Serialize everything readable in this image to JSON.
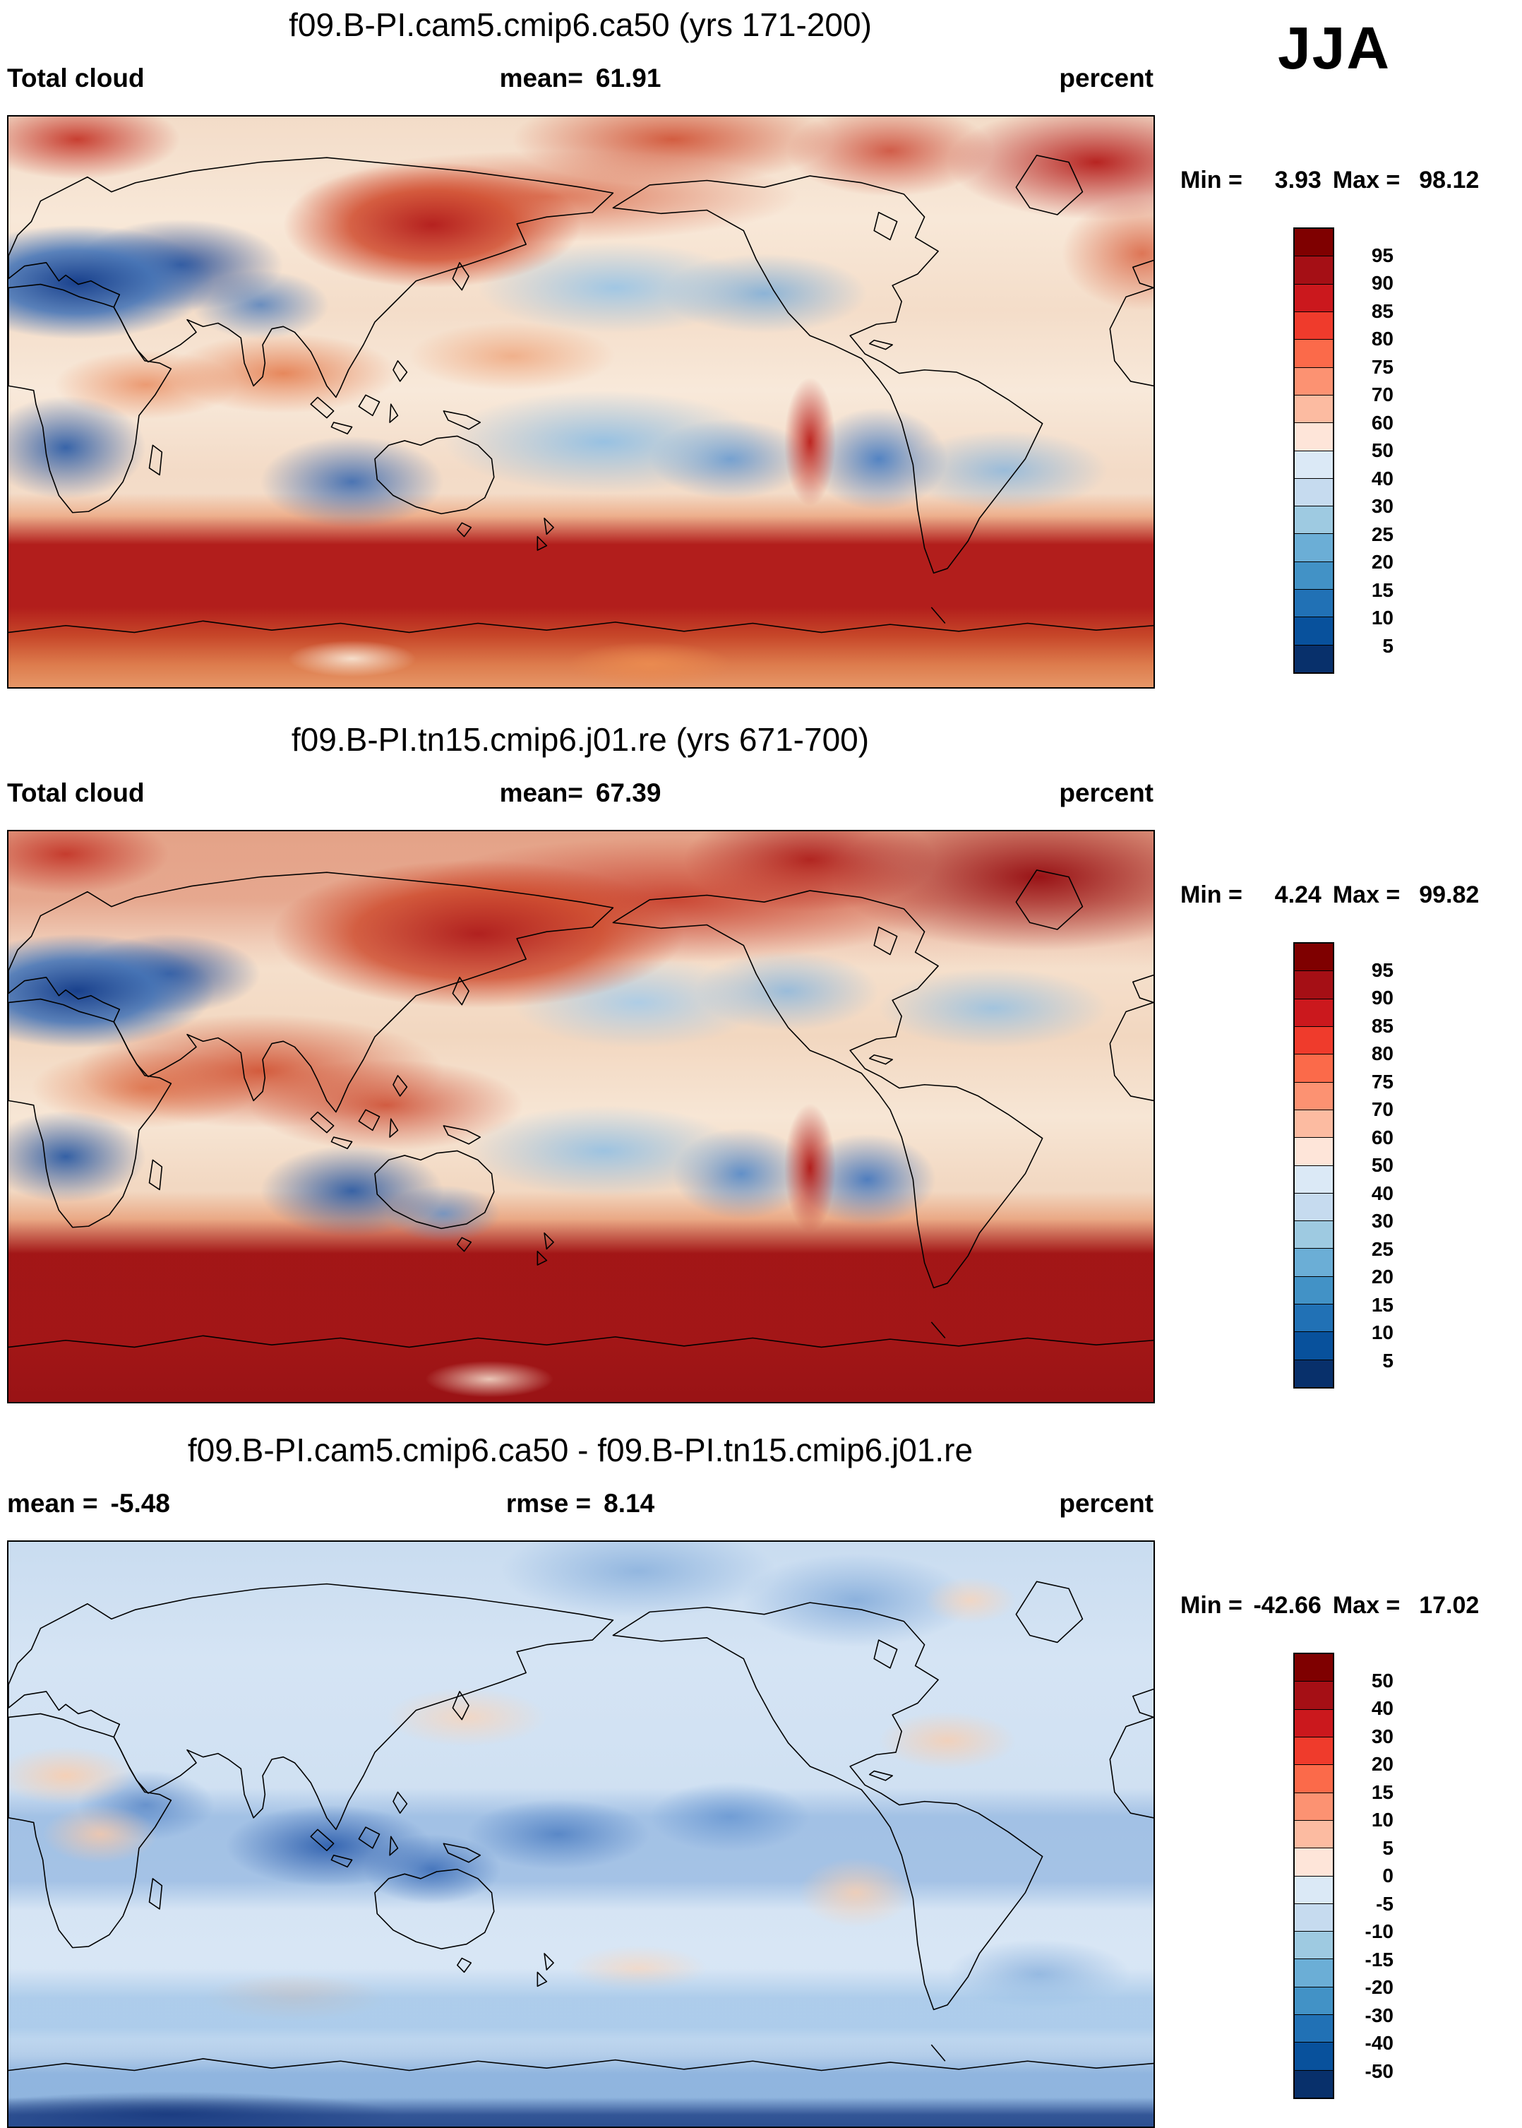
{
  "header": {
    "season_label": "JJA"
  },
  "panels": [
    {
      "title": "f09.B-PI.cam5.cmip6.ca50 (yrs 171-200)",
      "left_label": "Total cloud",
      "center_label": "mean=",
      "center_value": "61.91",
      "units": "percent",
      "min_label": "Min =",
      "min_value": "3.93",
      "max_label": "Max =",
      "max_value": "98.12",
      "colorbar": {
        "labels": [
          "95",
          "90",
          "85",
          "80",
          "75",
          "70",
          "60",
          "50",
          "40",
          "30",
          "25",
          "20",
          "15",
          "10",
          "5"
        ],
        "colors": [
          "#7f0000",
          "#a50f15",
          "#cb181d",
          "#ef3b2c",
          "#fb6a4a",
          "#fc9272",
          "#fcbba1",
          "#fee5d9",
          "#dbe9f6",
          "#c6dbef",
          "#9ecae1",
          "#6baed6",
          "#4292c6",
          "#2171b5",
          "#08519c",
          "#08306b"
        ]
      }
    },
    {
      "title": "f09.B-PI.tn15.cmip6.j01.re (yrs 671-700)",
      "left_label": "Total cloud",
      "center_label": "mean=",
      "center_value": "67.39",
      "units": "percent",
      "min_label": "Min =",
      "min_value": "4.24",
      "max_label": "Max =",
      "max_value": "99.82",
      "colorbar": {
        "labels": [
          "95",
          "90",
          "85",
          "80",
          "75",
          "70",
          "60",
          "50",
          "40",
          "30",
          "25",
          "20",
          "15",
          "10",
          "5"
        ],
        "colors": [
          "#7f0000",
          "#a50f15",
          "#cb181d",
          "#ef3b2c",
          "#fb6a4a",
          "#fc9272",
          "#fcbba1",
          "#fee5d9",
          "#dbe9f6",
          "#c6dbef",
          "#9ecae1",
          "#6baed6",
          "#4292c6",
          "#2171b5",
          "#08519c",
          "#08306b"
        ]
      }
    },
    {
      "title": "f09.B-PI.cam5.cmip6.ca50 - f09.B-PI.tn15.cmip6.j01.re",
      "left_label": "mean =",
      "left_value": "-5.48",
      "center_label": "rmse =",
      "center_value": "8.14",
      "units": "percent",
      "min_label": "Min =",
      "min_value": "-42.66",
      "max_label": "Max =",
      "max_value": "17.02",
      "colorbar": {
        "labels": [
          "50",
          "40",
          "30",
          "20",
          "15",
          "10",
          "5",
          "0",
          "-5",
          "-10",
          "-15",
          "-20",
          "-30",
          "-40",
          "-50"
        ],
        "colors": [
          "#7f0000",
          "#a50f15",
          "#cb181d",
          "#ef3b2c",
          "#fb6a4a",
          "#fc9272",
          "#fcbba1",
          "#fee5d9",
          "#dbe9f6",
          "#c6dbef",
          "#9ecae1",
          "#6baed6",
          "#4292c6",
          "#2171b5",
          "#08519c",
          "#08306b"
        ]
      }
    }
  ],
  "chart_data": [
    {
      "type": "heatmap",
      "title": "f09.B-PI.cam5.cmip6.ca50 (yrs 171-200)",
      "variable": "Total cloud",
      "season": "JJA",
      "units": "percent",
      "mean": 61.91,
      "min": 3.93,
      "max": 98.12,
      "contour_levels": [
        5,
        10,
        15,
        20,
        25,
        30,
        40,
        50,
        60,
        70,
        75,
        80,
        85,
        90,
        95
      ],
      "palette_top_to_bottom": [
        "#7f0000",
        "#a50f15",
        "#cb181d",
        "#ef3b2c",
        "#fb6a4a",
        "#fc9272",
        "#fcbba1",
        "#fee5d9",
        "#dbe9f6",
        "#c6dbef",
        "#9ecae1",
        "#6baed6",
        "#4292c6",
        "#2171b5",
        "#08519c",
        "#08306b"
      ],
      "legend_position": "right",
      "description": "Global filled-contour map: high cloud fraction (dark red) over the Southern Ocean storm track, North Pacific, Arctic and North Atlantic; low cloud fraction (deep blue) over Sahara/Arabia, southern Africa, Australia and subtropical oceans."
    },
    {
      "type": "heatmap",
      "title": "f09.B-PI.tn15.cmip6.j01.re (yrs 671-700)",
      "variable": "Total cloud",
      "season": "JJA",
      "units": "percent",
      "mean": 67.39,
      "min": 4.24,
      "max": 99.82,
      "contour_levels": [
        5,
        10,
        15,
        20,
        25,
        30,
        40,
        50,
        60,
        70,
        75,
        80,
        85,
        90,
        95
      ],
      "palette_top_to_bottom": [
        "#7f0000",
        "#a50f15",
        "#cb181d",
        "#ef3b2c",
        "#fb6a4a",
        "#fc9272",
        "#fcbba1",
        "#fee5d9",
        "#dbe9f6",
        "#c6dbef",
        "#9ecae1",
        "#6baed6",
        "#4292c6",
        "#2171b5",
        "#08519c",
        "#08306b"
      ],
      "legend_position": "right",
      "description": "Same field as panel 1 but with more extensive high cloud cover: deeper reds over the northern oceans, tropics and a broader dark-red Southern Ocean band; similar blue minima over Sahara/Arabia, southern Africa and Australia."
    },
    {
      "type": "heatmap",
      "title": "f09.B-PI.cam5.cmip6.ca50 - f09.B-PI.tn15.cmip6.j01.re",
      "variable": "Total cloud difference",
      "season": "JJA",
      "units": "percent",
      "mean": -5.48,
      "rmse": 8.14,
      "min": -42.66,
      "max": 17.02,
      "contour_levels": [
        -50,
        -40,
        -30,
        -20,
        -15,
        -10,
        -5,
        0,
        5,
        10,
        15,
        20,
        30,
        40,
        50
      ],
      "palette_top_to_bottom": [
        "#7f0000",
        "#a50f15",
        "#cb181d",
        "#ef3b2c",
        "#fb6a4a",
        "#fc9272",
        "#fcbba1",
        "#fee5d9",
        "#dbe9f6",
        "#c6dbef",
        "#9ecae1",
        "#6baed6",
        "#4292c6",
        "#2171b5",
        "#08519c",
        "#08306b"
      ],
      "legend_position": "right",
      "description": "Difference map dominated by weak negative values (light blue) with stronger negative blobs (darker blue) in the tropical warm pool and near Antarctica, and scattered small positive (pale orange) patches over Africa, the North Atlantic and South America."
    }
  ]
}
